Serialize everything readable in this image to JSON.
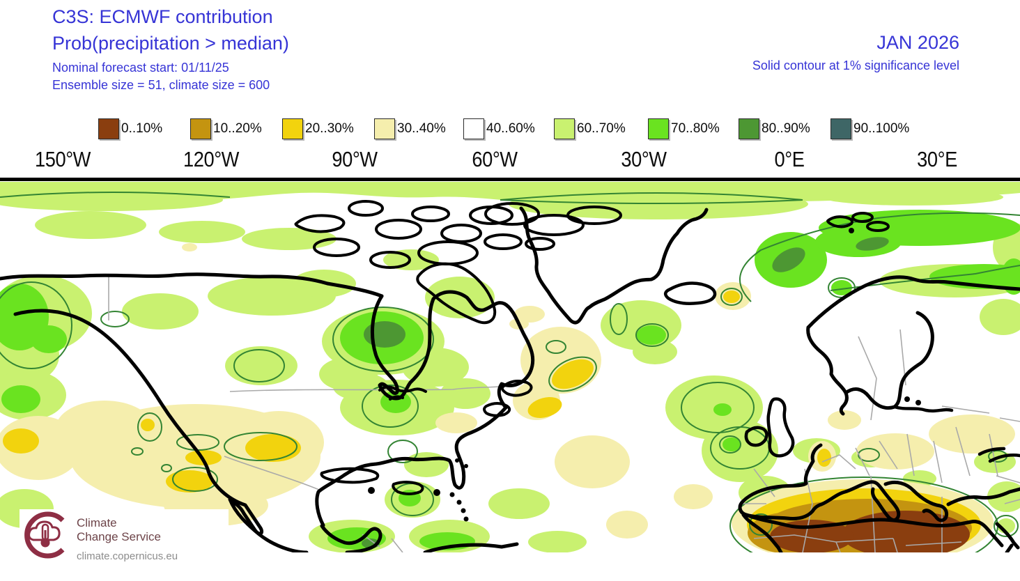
{
  "header": {
    "title": "C3S: ECMWF contribution",
    "subtitle": "Prob(precipitation > median)",
    "forecast_start": "Nominal forecast start: 01/11/25",
    "ensemble_info": "Ensemble size = 51, climate size = 600",
    "valid_month": "JAN 2026",
    "contour_note": "Solid contour at 1% significance level",
    "title_color": "#3634d6"
  },
  "legend": {
    "items": [
      {
        "label": "0..10%",
        "color": "#8a3e0f"
      },
      {
        "label": "10..20%",
        "color": "#c49410"
      },
      {
        "label": "20..30%",
        "color": "#f2d30e"
      },
      {
        "label": "30..40%",
        "color": "#f5eead"
      },
      {
        "label": "40..60%",
        "color": "#ffffff"
      },
      {
        "label": "60..70%",
        "color": "#c9f170"
      },
      {
        "label": "70..80%",
        "color": "#6ae320"
      },
      {
        "label": "80..90%",
        "color": "#4d9733"
      },
      {
        "label": "90..100%",
        "color": "#3e6666"
      }
    ]
  },
  "axis": {
    "longitude_labels": [
      "150°W",
      "120°W",
      "90°W",
      "60°W",
      "30°W",
      "0°E",
      "30°E"
    ]
  },
  "map": {
    "coastline_color": "#000000",
    "country_border_color": "#a9a9a9",
    "significance_contour_color": "#338433",
    "ocean_land_background": "#ffffff"
  },
  "footer_logo": {
    "line1": "Climate",
    "line2": "Change Service",
    "url": "climate.copernicus.eu",
    "brand_color": "#8e2e44"
  }
}
